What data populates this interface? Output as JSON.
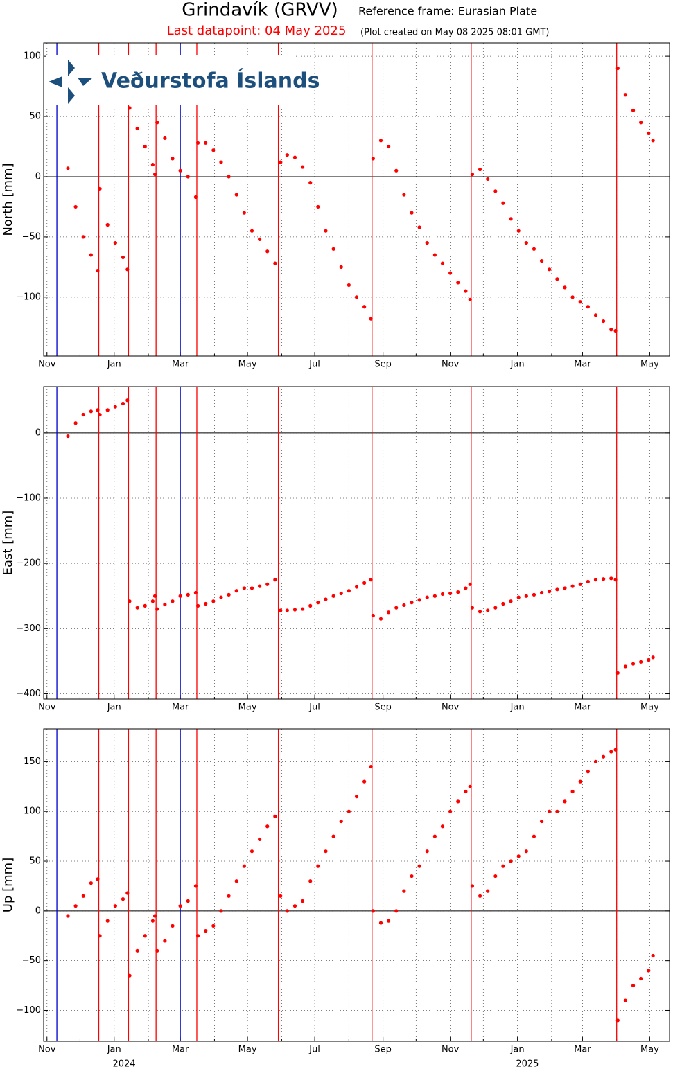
{
  "chart_data": {
    "type": "scatter",
    "title": "Grindavík (GRVV)",
    "reference": "Reference frame: Eurasian Plate",
    "last_datapoint": "Last datapoint: 04 May 2025",
    "created": "(Plot created on May 08 2025 08:01 GMT)",
    "logo_text": "Veðurstofa Íslands",
    "color": "#ff0000",
    "grid": true,
    "xlim": [
      "2023-10-29",
      "2025-05-19"
    ],
    "xticks": [
      {
        "value": "2023-11-01",
        "label": "Nov"
      },
      {
        "value": "2024-01-01",
        "label": "Jan"
      },
      {
        "value": "2024-03-01",
        "label": "Mar"
      },
      {
        "value": "2024-05-01",
        "label": "May"
      },
      {
        "value": "2024-07-01",
        "label": "Jul"
      },
      {
        "value": "2024-09-01",
        "label": "Sep"
      },
      {
        "value": "2024-11-01",
        "label": "Nov"
      },
      {
        "value": "2025-01-01",
        "label": "Jan"
      },
      {
        "value": "2025-03-01",
        "label": "Mar"
      },
      {
        "value": "2025-05-01",
        "label": "May"
      }
    ],
    "xminorticks": [
      "2023-12-01",
      "2024-02-01",
      "2024-04-01",
      "2024-06-01",
      "2024-08-01",
      "2024-10-01",
      "2024-12-01",
      "2025-02-01",
      "2025-04-01"
    ],
    "year_labels": [
      {
        "value": "2024-01-10",
        "label": "2024"
      },
      {
        "value": "2025-01-10",
        "label": "2025"
      }
    ],
    "events": [
      {
        "date": "2023-11-10",
        "color": "#0000cc"
      },
      {
        "date": "2024-03-01",
        "color": "#0000cc"
      },
      {
        "date": "2023-12-18",
        "color": "#ff0000"
      },
      {
        "date": "2024-01-14",
        "color": "#ff0000"
      },
      {
        "date": "2024-02-08",
        "color": "#ff0000"
      },
      {
        "date": "2024-03-16",
        "color": "#ff0000"
      },
      {
        "date": "2024-05-29",
        "color": "#ff0000"
      },
      {
        "date": "2024-08-22",
        "color": "#ff0000"
      },
      {
        "date": "2024-11-20",
        "color": "#ff0000"
      },
      {
        "date": "2025-04-01",
        "color": "#ff0000"
      }
    ],
    "x": [
      "2023-11-20",
      "2023-11-27",
      "2023-12-04",
      "2023-12-11",
      "2023-12-17",
      "2023-12-19",
      "2023-12-26",
      "2024-01-02",
      "2024-01-09",
      "2024-01-13",
      "2024-01-15",
      "2024-01-22",
      "2024-01-29",
      "2024-02-05",
      "2024-02-07",
      "2024-02-09",
      "2024-02-16",
      "2024-02-23",
      "2024-03-01",
      "2024-03-08",
      "2024-03-15",
      "2024-03-17",
      "2024-03-24",
      "2024-03-31",
      "2024-04-07",
      "2024-04-14",
      "2024-04-21",
      "2024-04-28",
      "2024-05-05",
      "2024-05-12",
      "2024-05-19",
      "2024-05-26",
      "2024-05-31",
      "2024-06-06",
      "2024-06-13",
      "2024-06-20",
      "2024-06-27",
      "2024-07-04",
      "2024-07-11",
      "2024-07-18",
      "2024-07-25",
      "2024-08-01",
      "2024-08-08",
      "2024-08-15",
      "2024-08-21",
      "2024-08-23",
      "2024-08-30",
      "2024-09-06",
      "2024-09-13",
      "2024-09-20",
      "2024-09-27",
      "2024-10-04",
      "2024-10-11",
      "2024-10-18",
      "2024-10-25",
      "2024-11-01",
      "2024-11-08",
      "2024-11-15",
      "2024-11-19",
      "2024-11-21",
      "2024-11-28",
      "2024-12-05",
      "2024-12-12",
      "2024-12-19",
      "2024-12-26",
      "2025-01-02",
      "2025-01-09",
      "2025-01-16",
      "2025-01-23",
      "2025-01-30",
      "2025-02-06",
      "2025-02-13",
      "2025-02-20",
      "2025-02-27",
      "2025-03-06",
      "2025-03-13",
      "2025-03-20",
      "2025-03-27",
      "2025-03-31",
      "2025-04-02",
      "2025-04-09",
      "2025-04-16",
      "2025-04-23",
      "2025-04-30",
      "2025-05-04"
    ],
    "panels": [
      {
        "ylabel": "North [mm]",
        "ylim": [
          -149,
          111
        ],
        "yticks": [
          {
            "value": -100,
            "label": "−100"
          },
          {
            "value": -50,
            "label": "−50"
          },
          0,
          50,
          100
        ],
        "values": [
          7,
          -25,
          -50,
          -65,
          -78,
          -10,
          -40,
          -55,
          -67,
          -77,
          57,
          40,
          25,
          10,
          2,
          45,
          32,
          15,
          5,
          0,
          -17,
          28,
          28,
          22,
          12,
          0,
          -15,
          -30,
          -45,
          -52,
          -62,
          -72,
          12,
          18,
          16,
          8,
          -5,
          -25,
          -45,
          -60,
          -75,
          -90,
          -100,
          -108,
          -118,
          15,
          30,
          25,
          5,
          -15,
          -30,
          -42,
          -55,
          -65,
          -72,
          -80,
          -88,
          -95,
          -102,
          2,
          6,
          -2,
          -12,
          -22,
          -35,
          -45,
          -55,
          -60,
          -70,
          -77,
          -85,
          -92,
          -100,
          -104,
          -108,
          -115,
          -120,
          -127,
          -128,
          90,
          68,
          55,
          45,
          36,
          30
        ]
      },
      {
        "ylabel": "East [mm]",
        "ylim": [
          -408,
          71
        ],
        "yticks": [
          {
            "value": -400,
            "label": "−400"
          },
          {
            "value": -300,
            "label": "−300"
          },
          {
            "value": -200,
            "label": "−200"
          },
          {
            "value": -100,
            "label": "−100"
          },
          0
        ],
        "values": [
          -5,
          15,
          28,
          33,
          35,
          28,
          35,
          40,
          45,
          50,
          -258,
          -268,
          -265,
          -258,
          -250,
          -270,
          -263,
          -258,
          -250,
          -248,
          -245,
          -265,
          -262,
          -258,
          -252,
          -248,
          -242,
          -238,
          -238,
          -235,
          -232,
          -225,
          -272,
          -272,
          -271,
          -270,
          -265,
          -260,
          -255,
          -250,
          -246,
          -242,
          -236,
          -230,
          -225,
          -280,
          -285,
          -275,
          -268,
          -264,
          -260,
          -256,
          -252,
          -250,
          -247,
          -246,
          -244,
          -238,
          -232,
          -268,
          -274,
          -272,
          -268,
          -262,
          -258,
          -252,
          -250,
          -248,
          -245,
          -243,
          -240,
          -238,
          -235,
          -232,
          -228,
          -225,
          -224,
          -223,
          -225,
          -368,
          -358,
          -354,
          -351,
          -348,
          -344
        ]
      },
      {
        "ylabel": "Up [mm]",
        "ylim": [
          -131,
          183
        ],
        "yticks": [
          {
            "value": -100,
            "label": "−100"
          },
          {
            "value": -50,
            "label": "−50"
          },
          0,
          50,
          100,
          150
        ],
        "values": [
          -5,
          5,
          15,
          28,
          32,
          -25,
          -10,
          5,
          12,
          18,
          -65,
          -40,
          -25,
          -10,
          -5,
          -40,
          -30,
          -15,
          5,
          10,
          25,
          -25,
          -20,
          -15,
          0,
          15,
          30,
          45,
          60,
          72,
          85,
          95,
          15,
          0,
          5,
          10,
          30,
          45,
          60,
          75,
          90,
          100,
          115,
          130,
          145,
          0,
          -12,
          -10,
          0,
          20,
          35,
          45,
          60,
          75,
          85,
          100,
          110,
          120,
          125,
          25,
          15,
          20,
          35,
          45,
          50,
          55,
          60,
          75,
          90,
          100,
          100,
          110,
          120,
          130,
          140,
          150,
          155,
          160,
          162,
          -110,
          -90,
          -75,
          -68,
          -60,
          -45
        ]
      }
    ]
  }
}
